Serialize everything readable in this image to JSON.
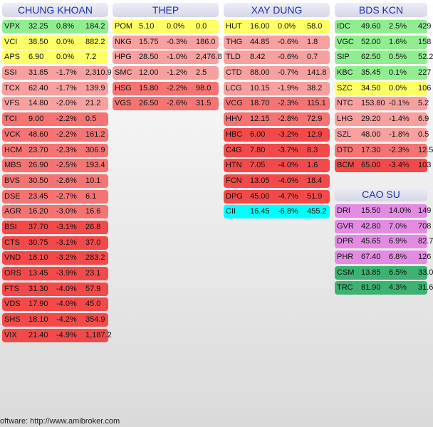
{
  "colors": {
    "up_strong": "#e38be3",
    "up_medium": "#3cb371",
    "up_light": "#90ee90",
    "unchanged": "#ffff66",
    "down_slight": "#f7a0a0",
    "down_medium": "#f47474",
    "down_strong": "#f24a4a",
    "floor": "#ff2a2a",
    "ceiling": "#00ffff"
  },
  "sectors": [
    {
      "name": "CHUNG KHOAN",
      "stocks": [
        {
          "ticker": "VPX",
          "price": "32.25",
          "change": "0.8%",
          "volume": "184.2",
          "color": "#90ee90"
        },
        {
          "ticker": "VCI",
          "price": "38.50",
          "change": "0.0%",
          "volume": "882.2",
          "color": "#ffff66"
        },
        {
          "ticker": "APS",
          "price": "6.90",
          "change": "0.0%",
          "volume": "7.2",
          "color": "#ffff66"
        },
        {
          "ticker": "SSI",
          "price": "31.85",
          "change": "-1.7%",
          "volume": "2,310.9",
          "color": "#f7a0a0"
        },
        {
          "ticker": "TCX",
          "price": "62.40",
          "change": "-1.7%",
          "volume": "139.9",
          "color": "#f7a0a0"
        },
        {
          "ticker": "VFS",
          "price": "14.80",
          "change": "-2.0%",
          "volume": "21.2",
          "color": "#f7a0a0"
        },
        {
          "ticker": "TCI",
          "price": "9.00",
          "change": "-2.2%",
          "volume": "0.5",
          "color": "#f47474"
        },
        {
          "ticker": "VCK",
          "price": "48.60",
          "change": "-2.2%",
          "volume": "161.2",
          "color": "#f47474"
        },
        {
          "ticker": "HCM",
          "price": "23.70",
          "change": "-2.3%",
          "volume": "306.9",
          "color": "#f47474"
        },
        {
          "ticker": "MBS",
          "price": "26.90",
          "change": "-2.5%",
          "volume": "193.4",
          "color": "#f47474"
        },
        {
          "ticker": "BVS",
          "price": "30.50",
          "change": "-2.6%",
          "volume": "10.1",
          "color": "#f47474"
        },
        {
          "ticker": "DSE",
          "price": "23.45",
          "change": "-2.7%",
          "volume": "6.1",
          "color": "#f47474"
        },
        {
          "ticker": "AGR",
          "price": "16.20",
          "change": "-3.0%",
          "volume": "16.6",
          "color": "#f47474"
        },
        {
          "ticker": "BSI",
          "price": "37.70",
          "change": "-3.1%",
          "volume": "26.8",
          "color": "#f24a4a"
        },
        {
          "ticker": "CTS",
          "price": "30.75",
          "change": "-3.1%",
          "volume": "37.0",
          "color": "#f24a4a"
        },
        {
          "ticker": "VND",
          "price": "18.10",
          "change": "-3.2%",
          "volume": "283.2",
          "color": "#f24a4a"
        },
        {
          "ticker": "ORS",
          "price": "13.45",
          "change": "-3.9%",
          "volume": "23.1",
          "color": "#f24a4a"
        },
        {
          "ticker": "FTS",
          "price": "31.30",
          "change": "-4.0%",
          "volume": "57.9",
          "color": "#f24a4a"
        },
        {
          "ticker": "VDS",
          "price": "17.90",
          "change": "-4.0%",
          "volume": "45.0",
          "color": "#f24a4a"
        },
        {
          "ticker": "SHS",
          "price": "18.10",
          "change": "-4.2%",
          "volume": "354.9",
          "color": "#f24a4a"
        },
        {
          "ticker": "VIX",
          "price": "21.40",
          "change": "-4.9%",
          "volume": "1,187.2",
          "color": "#f24a4a"
        }
      ]
    },
    {
      "name": "THEP",
      "stocks": [
        {
          "ticker": "POM",
          "price": "5.10",
          "change": "0.0%",
          "volume": "0.0",
          "color": "#ffff66"
        },
        {
          "ticker": "NKG",
          "price": "15.75",
          "change": "-0.3%",
          "volume": "186.0",
          "color": "#f7a0a0"
        },
        {
          "ticker": "HPG",
          "price": "28.50",
          "change": "-1.0%",
          "volume": "2,476.8",
          "color": "#f7a0a0"
        },
        {
          "ticker": "SMC",
          "price": "12.00",
          "change": "-1.2%",
          "volume": "2.5",
          "color": "#f7a0a0"
        },
        {
          "ticker": "HSG",
          "price": "15.80",
          "change": "-2.2%",
          "volume": "98.0",
          "color": "#f47474"
        },
        {
          "ticker": "VGS",
          "price": "26.50",
          "change": "-2.6%",
          "volume": "31.5",
          "color": "#f47474"
        }
      ]
    },
    {
      "name": "XAY DUNG",
      "stocks": [
        {
          "ticker": "HUT",
          "price": "16.00",
          "change": "0.0%",
          "volume": "58.0",
          "color": "#ffff66"
        },
        {
          "ticker": "THG",
          "price": "44.85",
          "change": "-0.6%",
          "volume": "1.8",
          "color": "#f7a0a0"
        },
        {
          "ticker": "TLD",
          "price": "8.42",
          "change": "-0.6%",
          "volume": "0.7",
          "color": "#f7a0a0"
        },
        {
          "ticker": "CTD",
          "price": "88.00",
          "change": "-0.7%",
          "volume": "141.8",
          "color": "#f7a0a0"
        },
        {
          "ticker": "LCG",
          "price": "10.15",
          "change": "-1.9%",
          "volume": "38.2",
          "color": "#f7a0a0"
        },
        {
          "ticker": "VCG",
          "price": "18.70",
          "change": "-2.3%",
          "volume": "115.1",
          "color": "#f47474"
        },
        {
          "ticker": "HHV",
          "price": "12.15",
          "change": "-2.8%",
          "volume": "72.9",
          "color": "#f47474"
        },
        {
          "ticker": "HBC",
          "price": "6.00",
          "change": "-3.2%",
          "volume": "12.9",
          "color": "#f24a4a"
        },
        {
          "ticker": "C4G",
          "price": "7.80",
          "change": "-3.7%",
          "volume": "8.3",
          "color": "#f24a4a"
        },
        {
          "ticker": "HTN",
          "price": "7.05",
          "change": "-4.0%",
          "volume": "1.6",
          "color": "#f24a4a"
        },
        {
          "ticker": "FCN",
          "price": "13.05",
          "change": "-4.0%",
          "volume": "18.4",
          "color": "#f24a4a"
        },
        {
          "ticker": "DPG",
          "price": "45.00",
          "change": "-4.7%",
          "volume": "51.9",
          "color": "#f24a4a"
        },
        {
          "ticker": "CII",
          "price": "16.45",
          "change": "-6.8%",
          "volume": "455.2",
          "color": "#00ffff"
        }
      ]
    },
    {
      "name": "BDS KCN",
      "stocks": [
        {
          "ticker": "IDC",
          "price": "49.60",
          "change": "2.5%",
          "volume": "429",
          "color": "#90ee90"
        },
        {
          "ticker": "VGC",
          "price": "52.00",
          "change": "1.6%",
          "volume": "158",
          "color": "#90ee90"
        },
        {
          "ticker": "SIP",
          "price": "62.50",
          "change": "0.5%",
          "volume": "52.2",
          "color": "#90ee90"
        },
        {
          "ticker": "KBC",
          "price": "35.45",
          "change": "0.1%",
          "volume": "227",
          "color": "#90ee90"
        },
        {
          "ticker": "SZC",
          "price": "34.50",
          "change": "0.0%",
          "volume": "106",
          "color": "#ffff66"
        },
        {
          "ticker": "NTC",
          "price": "153.80",
          "change": "-0.1%",
          "volume": "5.2",
          "color": "#f7a0a0"
        },
        {
          "ticker": "LHG",
          "price": "29.20",
          "change": "-1.4%",
          "volume": "6.9",
          "color": "#f7a0a0"
        },
        {
          "ticker": "SZL",
          "price": "48.00",
          "change": "-1.8%",
          "volume": "0.5",
          "color": "#f7a0a0"
        },
        {
          "ticker": "DTD",
          "price": "17.30",
          "change": "-2.3%",
          "volume": "12.5",
          "color": "#f47474"
        },
        {
          "ticker": "BCM",
          "price": "65.00",
          "change": "-3.4%",
          "volume": "103",
          "color": "#f24a4a"
        }
      ]
    },
    {
      "name": "CAO SU",
      "stocks": [
        {
          "ticker": "DRI",
          "price": "15.50",
          "change": "14.0%",
          "volume": "149",
          "color": "#e38be3"
        },
        {
          "ticker": "GVR",
          "price": "42.80",
          "change": "7.0%",
          "volume": "708",
          "color": "#e38be3"
        },
        {
          "ticker": "DPR",
          "price": "45.65",
          "change": "6.9%",
          "volume": "82.7",
          "color": "#e38be3"
        },
        {
          "ticker": "PHR",
          "price": "67.40",
          "change": "6.8%",
          "volume": "126",
          "color": "#e38be3"
        },
        {
          "ticker": "CSM",
          "price": "13.85",
          "change": "6.5%",
          "volume": "33.0",
          "color": "#3cb371"
        },
        {
          "ticker": "TRC",
          "price": "81.90",
          "change": "4.3%",
          "volume": "31.6",
          "color": "#3cb371"
        }
      ]
    }
  ],
  "footer": {
    "text": "oftware: http://www.amibroker.com"
  }
}
